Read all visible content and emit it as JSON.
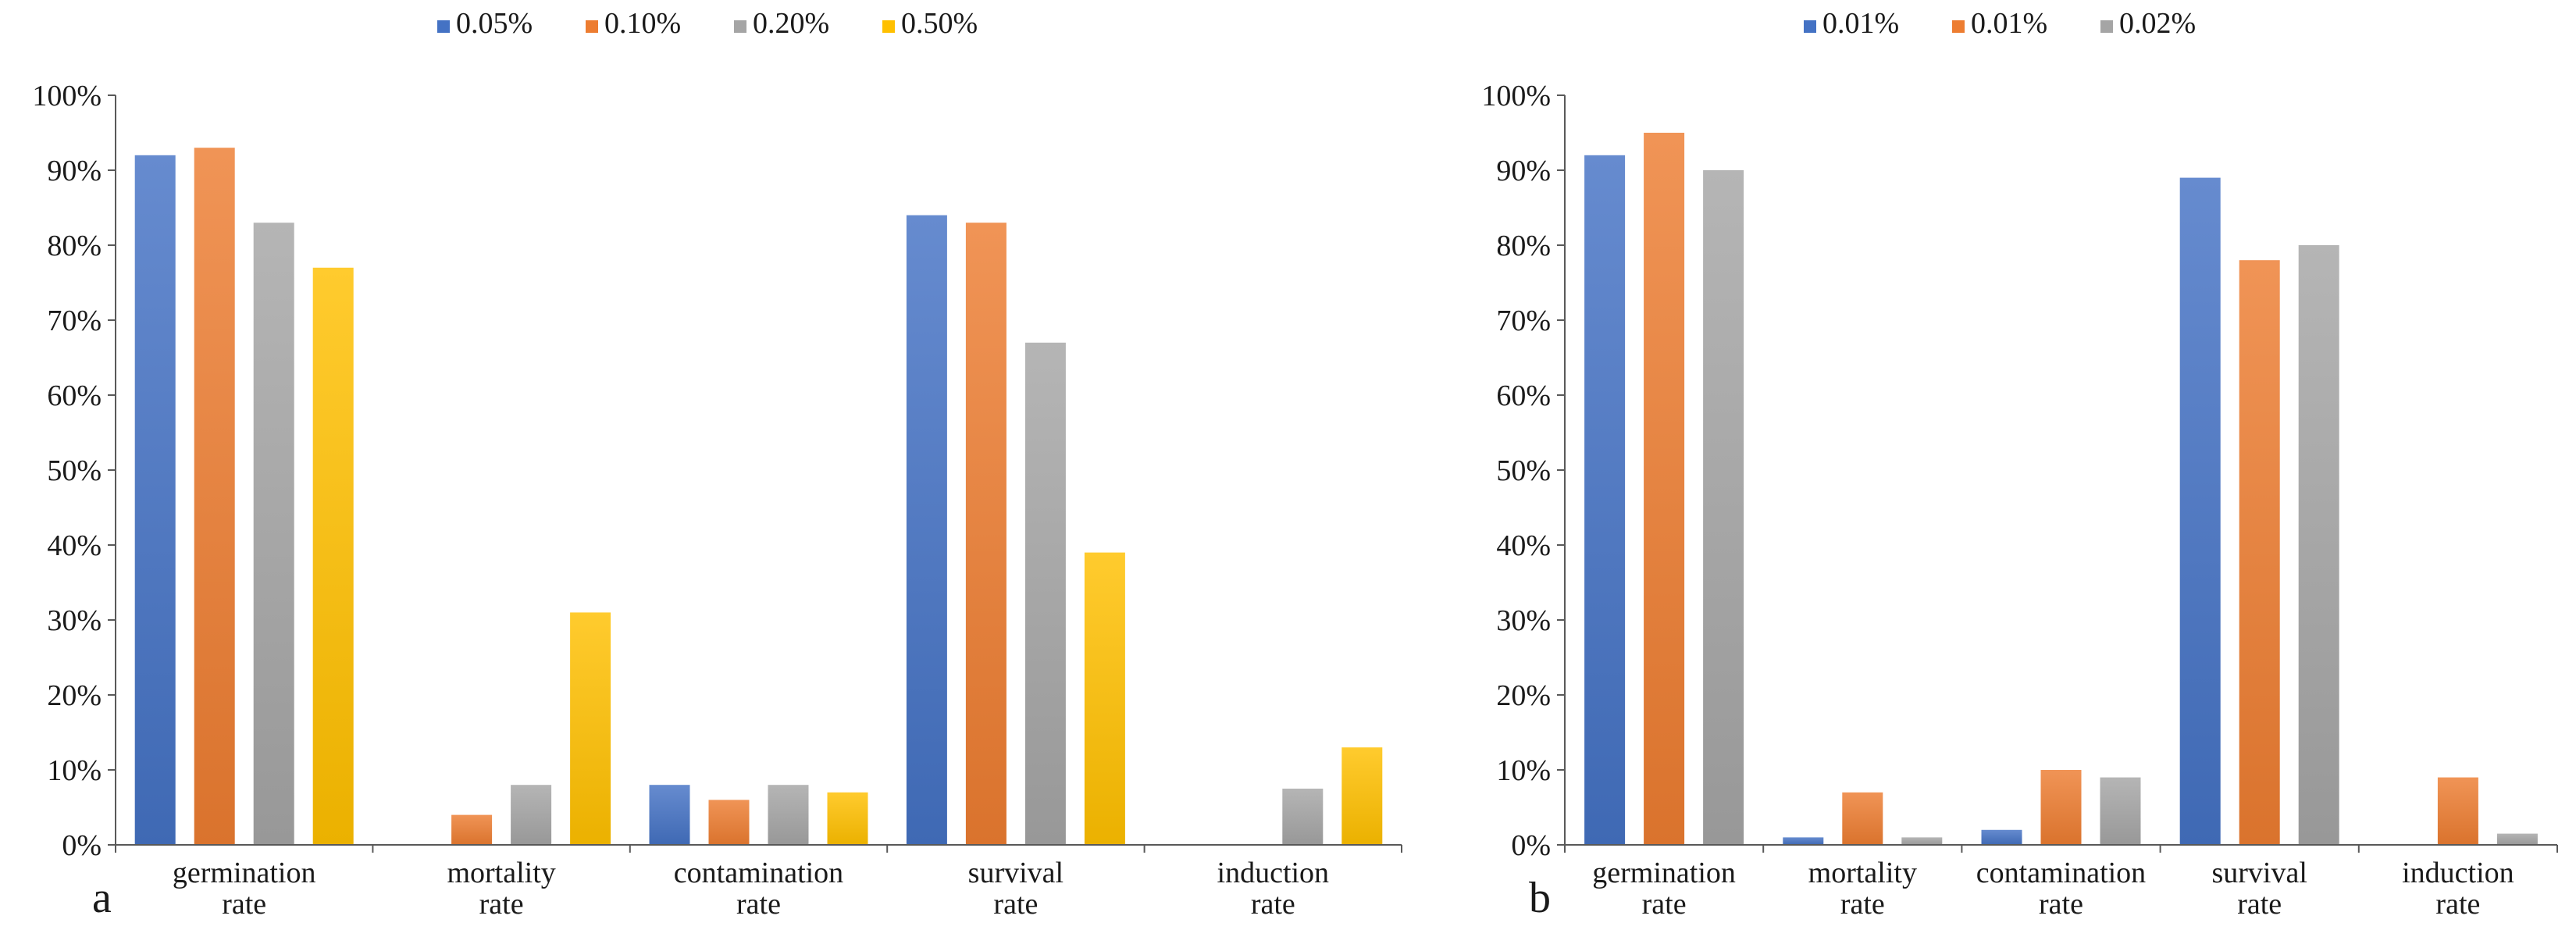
{
  "chart_data": [
    {
      "type": "bar",
      "panel_label": "a",
      "categories": [
        [
          "germination",
          "rate"
        ],
        [
          "mortality",
          "rate"
        ],
        [
          "contamination",
          "rate"
        ],
        [
          "survival",
          "rate"
        ],
        [
          "induction",
          "rate"
        ]
      ],
      "series": [
        {
          "name": "0.05%",
          "color": "#4472C4",
          "values": [
            92,
            0,
            8,
            84,
            0
          ]
        },
        {
          "name": "0.10%",
          "color": "#ED7D31",
          "values": [
            93,
            4,
            6,
            83,
            0
          ]
        },
        {
          "name": "0.20%",
          "color": "#A5A5A5",
          "values": [
            83,
            8,
            8,
            67,
            7.5
          ]
        },
        {
          "name": "0.50%",
          "color": "#FFC000",
          "values": [
            77,
            31,
            7,
            39,
            13
          ]
        }
      ],
      "y_ticks": [
        "0%",
        "10%",
        "20%",
        "30%",
        "40%",
        "50%",
        "60%",
        "70%",
        "80%",
        "90%",
        "100%"
      ],
      "ylim": [
        0,
        100
      ],
      "legend_position": "top",
      "title": "",
      "xlabel": "",
      "ylabel": ""
    },
    {
      "type": "bar",
      "panel_label": "b",
      "categories": [
        [
          "germination",
          "rate"
        ],
        [
          "mortality",
          "rate"
        ],
        [
          "contamination",
          "rate"
        ],
        [
          "survival",
          "rate"
        ],
        [
          "induction",
          "rate"
        ]
      ],
      "series": [
        {
          "name": "0.01%",
          "color": "#4472C4",
          "values": [
            92,
            1,
            2,
            89,
            0
          ]
        },
        {
          "name": "0.01%",
          "color": "#ED7D31",
          "values": [
            95,
            7,
            10,
            78,
            9
          ]
        },
        {
          "name": "0.02%",
          "color": "#A5A5A5",
          "values": [
            90,
            1,
            9,
            80,
            1.5
          ]
        }
      ],
      "y_ticks": [
        "0%",
        "10%",
        "20%",
        "30%",
        "40%",
        "50%",
        "60%",
        "70%",
        "80%",
        "90%",
        "100%"
      ],
      "ylim": [
        0,
        100
      ],
      "legend_position": "top",
      "title": "",
      "xlabel": "",
      "ylabel": ""
    }
  ]
}
